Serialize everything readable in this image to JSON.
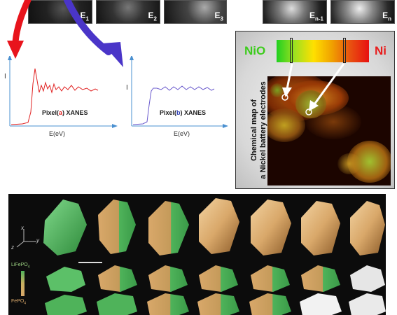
{
  "energy_frames": [
    {
      "base": "E",
      "sub": "1"
    },
    {
      "base": "E",
      "sub": "2"
    },
    {
      "base": "E",
      "sub": "3"
    },
    {
      "base": "E",
      "sub": "n-1"
    },
    {
      "base": "E",
      "sub": "n"
    }
  ],
  "spectrum_a": {
    "caption_prefix": "Pixel(",
    "caption_letter": "a",
    "caption_suffix": ") XANES",
    "y_label": "I",
    "x_label": "E(eV)",
    "color": "#e02020",
    "letter_color": "#e02020"
  },
  "spectrum_b": {
    "caption_prefix": "Pixel(",
    "caption_letter": "b",
    "caption_suffix": ") XANES",
    "y_label": "I",
    "x_label": "E(eV)",
    "color": "#6a5acd",
    "letter_color": "#2b3bb0"
  },
  "chemical_map": {
    "label_left": "NiO",
    "label_right": "Ni",
    "label_left_color": "#3ccc1c",
    "label_right_color": "#e81c1c",
    "vertical_caption_line1": "Chemical map of",
    "vertical_caption_line2": "a Nickel battery electrodes"
  },
  "tomography": {
    "axis_x": "x",
    "axis_y": "y",
    "axis_z": "z",
    "legend_top": "LiFePO",
    "legend_top_sub": "4",
    "legend_bottom": "FePO",
    "legend_bottom_sub": "4",
    "green_color": "#4fb35a",
    "gold_color": "#d9a86a"
  },
  "arrows": {
    "red": "#e8141c",
    "blue": "#4a35c8"
  }
}
